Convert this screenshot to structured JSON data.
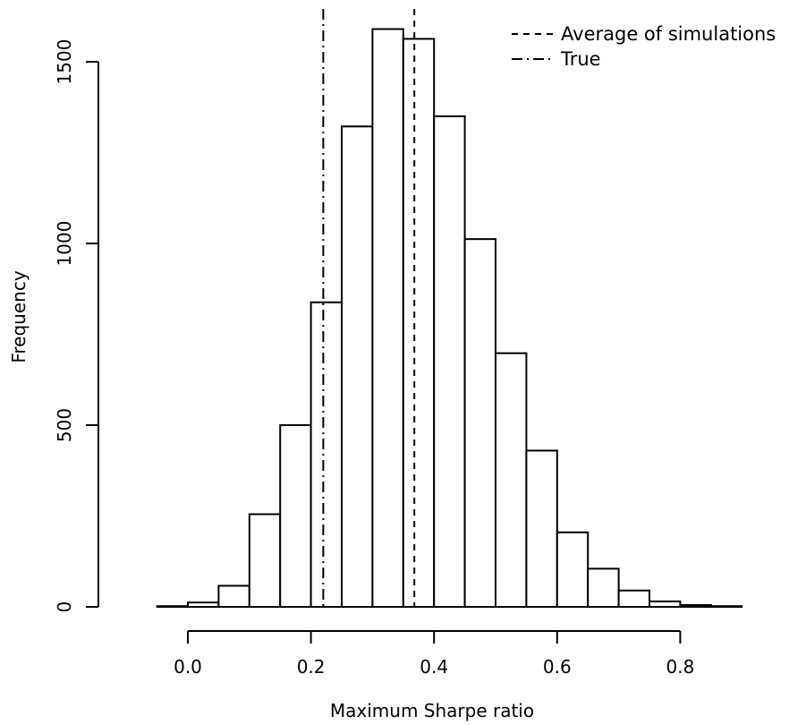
{
  "chart_data": {
    "type": "histogram",
    "title": "",
    "xlabel": "Maximum Sharpe ratio",
    "ylabel": "Frequency",
    "bin_width": 0.05,
    "bins": [
      {
        "start": -0.1,
        "end": -0.05,
        "count": 0
      },
      {
        "start": -0.05,
        "end": 0.0,
        "count": 2
      },
      {
        "start": 0.0,
        "end": 0.05,
        "count": 12
      },
      {
        "start": 0.05,
        "end": 0.1,
        "count": 58
      },
      {
        "start": 0.1,
        "end": 0.15,
        "count": 255
      },
      {
        "start": 0.15,
        "end": 0.2,
        "count": 500
      },
      {
        "start": 0.2,
        "end": 0.25,
        "count": 838
      },
      {
        "start": 0.25,
        "end": 0.3,
        "count": 1322
      },
      {
        "start": 0.3,
        "end": 0.35,
        "count": 1590
      },
      {
        "start": 0.35,
        "end": 0.4,
        "count": 1563
      },
      {
        "start": 0.4,
        "end": 0.45,
        "count": 1350
      },
      {
        "start": 0.45,
        "end": 0.5,
        "count": 1012
      },
      {
        "start": 0.5,
        "end": 0.55,
        "count": 698
      },
      {
        "start": 0.55,
        "end": 0.6,
        "count": 430
      },
      {
        "start": 0.6,
        "end": 0.65,
        "count": 205
      },
      {
        "start": 0.65,
        "end": 0.7,
        "count": 105
      },
      {
        "start": 0.7,
        "end": 0.75,
        "count": 45
      },
      {
        "start": 0.75,
        "end": 0.8,
        "count": 15
      },
      {
        "start": 0.8,
        "end": 0.85,
        "count": 5
      },
      {
        "start": 0.85,
        "end": 0.9,
        "count": 2
      },
      {
        "start": 0.9,
        "end": 0.95,
        "count": 0
      }
    ],
    "xlim": [
      -0.1,
      0.95
    ],
    "ylim": [
      0,
      1600
    ],
    "x_ticks": [
      0.0,
      0.2,
      0.4,
      0.6,
      0.8
    ],
    "x_tick_labels": [
      "0.0",
      "0.2",
      "0.4",
      "0.6",
      "0.8"
    ],
    "y_ticks": [
      0,
      500,
      1000,
      1500
    ],
    "y_tick_labels": [
      "0",
      "500",
      "1000",
      "1500"
    ],
    "reference_lines": [
      {
        "label": "Average of simulations",
        "x": 0.368,
        "style": "dashed"
      },
      {
        "label": "True",
        "x": 0.22,
        "style": "dashdot"
      }
    ],
    "legend": {
      "position": "top-right",
      "entries": [
        {
          "label": "Average of simulations",
          "style": "dashed"
        },
        {
          "label": "True",
          "style": "dashdot"
        }
      ]
    },
    "grid": false,
    "colors": {
      "bar_fill": "#ffffff",
      "bar_stroke": "#000000",
      "line": "#000000"
    }
  }
}
